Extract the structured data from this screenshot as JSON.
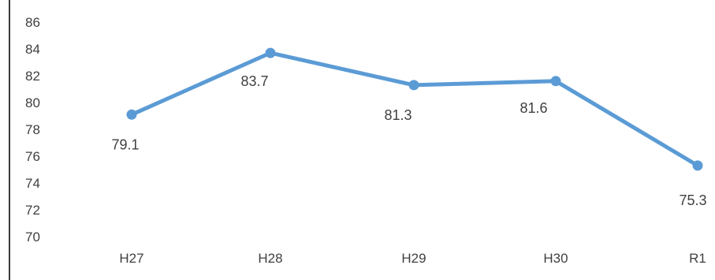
{
  "chart_data": {
    "type": "line",
    "categories": [
      "H27",
      "H28",
      "H29",
      "H30",
      "R1"
    ],
    "series": [
      {
        "values": [
          79.1,
          83.7,
          81.3,
          81.6,
          75.3
        ]
      }
    ],
    "data_labels": [
      "79.1",
      "83.7",
      "81.3",
      "81.6",
      "75.3"
    ],
    "yticks": [
      "86",
      "84",
      "82",
      "80",
      "78",
      "76",
      "74",
      "72",
      "70"
    ],
    "ylim": [
      70,
      86
    ],
    "title": "",
    "xlabel": "",
    "ylabel": "",
    "grid": false,
    "legend": "none",
    "line_color": "#5b9bd5"
  }
}
